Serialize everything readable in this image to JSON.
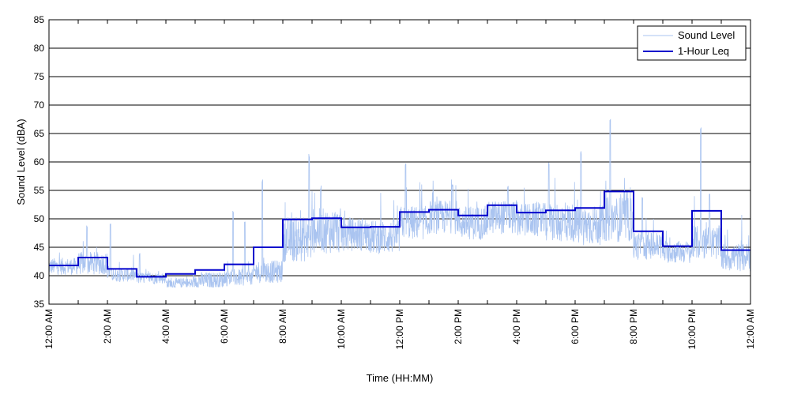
{
  "chart_data": {
    "type": "line",
    "xlabel": "Time (HH:MM)",
    "ylabel": "Sound Level (dBA)",
    "xlim": [
      0,
      24
    ],
    "ylim": [
      35,
      85
    ],
    "grid": "horizontal",
    "legend_position": "top-right",
    "y_ticks": [
      35,
      40,
      45,
      50,
      55,
      60,
      65,
      70,
      75,
      80,
      85
    ],
    "x_ticks": [
      {
        "hour": 0,
        "label": "12:00 AM"
      },
      {
        "hour": 2,
        "label": "2:00 AM"
      },
      {
        "hour": 4,
        "label": "4:00 AM"
      },
      {
        "hour": 6,
        "label": "6:00 AM"
      },
      {
        "hour": 8,
        "label": "8:00 AM"
      },
      {
        "hour": 10,
        "label": "10:00 AM"
      },
      {
        "hour": 12,
        "label": "12:00 PM"
      },
      {
        "hour": 14,
        "label": "2:00 PM"
      },
      {
        "hour": 16,
        "label": "4:00 PM"
      },
      {
        "hour": 18,
        "label": "6:00 PM"
      },
      {
        "hour": 20,
        "label": "8:00 PM"
      },
      {
        "hour": 22,
        "label": "10:00 PM"
      },
      {
        "hour": 24,
        "label": "12:00 AM"
      }
    ],
    "series": [
      {
        "name": "Sound Level",
        "color": "#aac4f0",
        "style": "thin-noisy",
        "hourly_baseline": [
          41.5,
          42,
          40,
          39.5,
          38.5,
          39,
          39.5,
          40.5,
          46,
          47.5,
          47,
          46.5,
          49,
          50,
          49,
          50,
          49.5,
          49,
          48.5,
          49.5,
          45,
          44,
          45.5,
          43
        ],
        "hourly_spread": [
          1.5,
          2,
          1.2,
          1,
          1,
          1.5,
          1.5,
          2,
          4,
          4,
          3,
          3,
          3,
          3,
          3,
          3,
          3,
          3.5,
          3.5,
          4,
          2.5,
          2,
          3,
          2.5
        ],
        "peaks": [
          {
            "x": 1.3,
            "y": 49
          },
          {
            "x": 2.1,
            "y": 49.5
          },
          {
            "x": 3.1,
            "y": 44
          },
          {
            "x": 6.3,
            "y": 51.5
          },
          {
            "x": 6.7,
            "y": 50
          },
          {
            "x": 7.3,
            "y": 57
          },
          {
            "x": 8.9,
            "y": 61.5
          },
          {
            "x": 9.3,
            "y": 56
          },
          {
            "x": 12.2,
            "y": 60
          },
          {
            "x": 13.8,
            "y": 56
          },
          {
            "x": 15.7,
            "y": 56
          },
          {
            "x": 17.1,
            "y": 60
          },
          {
            "x": 18.2,
            "y": 62
          },
          {
            "x": 19.2,
            "y": 68
          },
          {
            "x": 20.3,
            "y": 54
          },
          {
            "x": 22.3,
            "y": 66.5
          },
          {
            "x": 22.6,
            "y": 55
          }
        ]
      },
      {
        "name": "1-Hour Leq",
        "color": "#0000cc",
        "style": "step",
        "hourly_values": [
          41.8,
          43.2,
          41.2,
          39.8,
          40.3,
          41.0,
          42.0,
          45.0,
          49.9,
          50.1,
          48.5,
          48.6,
          51.2,
          51.6,
          50.6,
          52.4,
          51.1,
          51.5,
          51.9,
          54.8,
          47.8,
          45.2,
          51.4,
          44.5
        ]
      }
    ]
  }
}
